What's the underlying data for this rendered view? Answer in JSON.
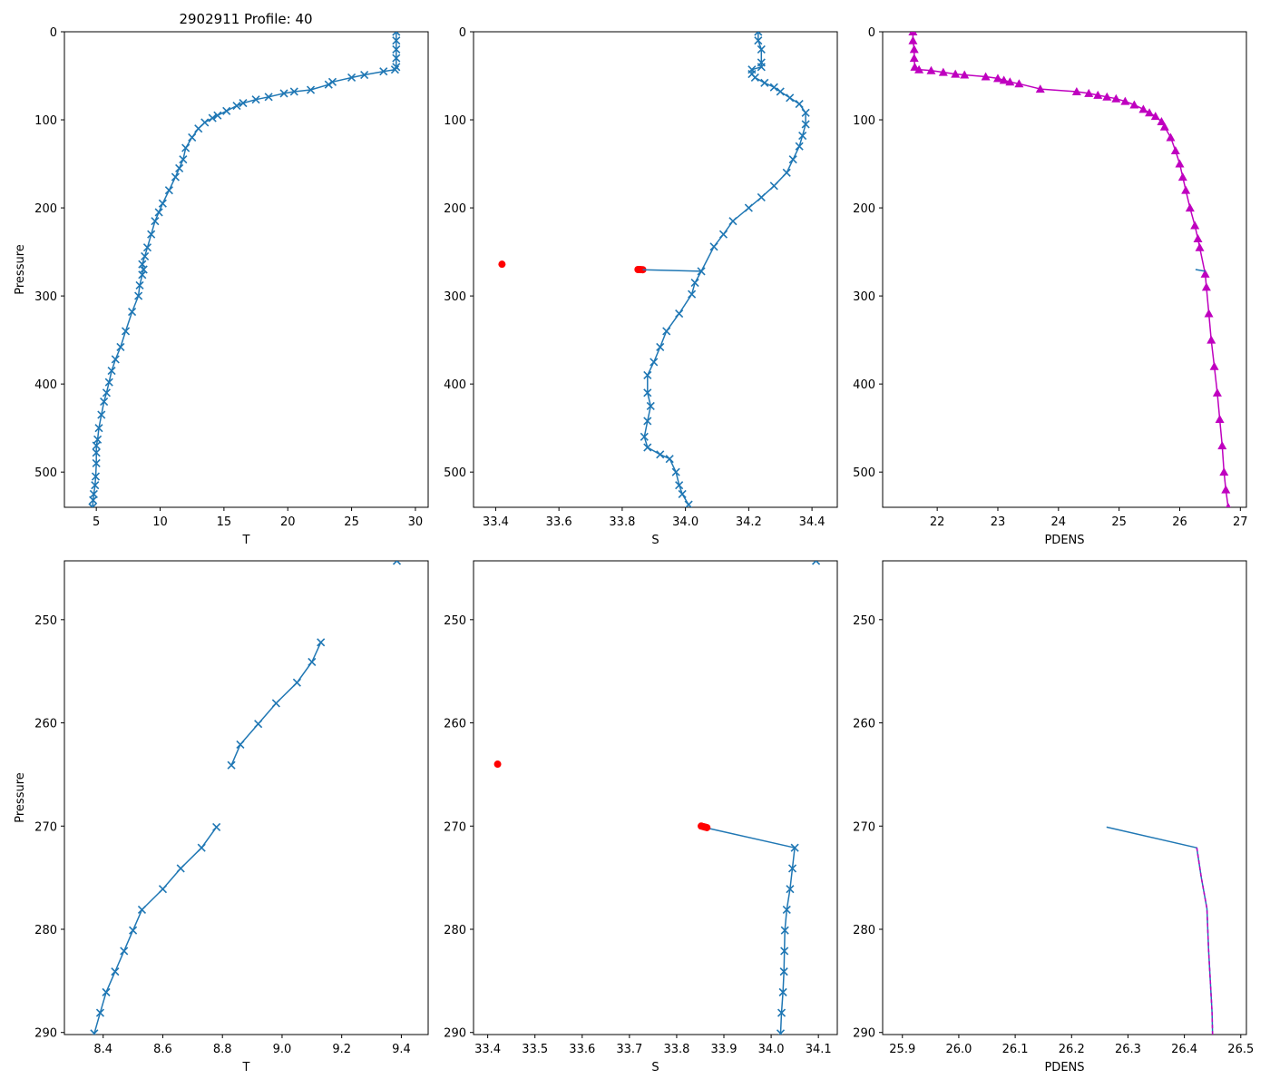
{
  "figure_title": "2902911 Profile: 40",
  "colors": {
    "series": "#1f77b4",
    "flag": "#ff0000",
    "density": "#bf00bf"
  },
  "chart_data": [
    {
      "panel": "top-left",
      "type": "line",
      "title": "2902911 Profile: 40",
      "xlabel": "T",
      "ylabel": "Pressure",
      "xlim": [
        2.5,
        31
      ],
      "ylim": [
        540,
        0
      ],
      "y_inverted": true,
      "xticks": [
        5,
        10,
        15,
        20,
        25,
        30
      ],
      "yticks": [
        0,
        100,
        200,
        300,
        400,
        500
      ],
      "series": [
        {
          "name": "T",
          "marker": "x",
          "color": "#1f77b4",
          "line": true,
          "points": [
            [
              28.5,
              0
            ],
            [
              28.5,
              10
            ],
            [
              28.5,
              20
            ],
            [
              28.5,
              30
            ],
            [
              28.5,
              40
            ],
            [
              28.4,
              43
            ],
            [
              27.5,
              45
            ],
            [
              26,
              49
            ],
            [
              25,
              52
            ],
            [
              23.5,
              57
            ],
            [
              23.2,
              60
            ],
            [
              21.8,
              66
            ],
            [
              20.5,
              68
            ],
            [
              19.7,
              70
            ],
            [
              18.5,
              74
            ],
            [
              17.5,
              77
            ],
            [
              16.5,
              81
            ],
            [
              16,
              84
            ],
            [
              15.2,
              90
            ],
            [
              14.5,
              95
            ],
            [
              14.1,
              98
            ],
            [
              13.5,
              103
            ],
            [
              13,
              110
            ],
            [
              12.5,
              120
            ],
            [
              12,
              132
            ],
            [
              11.8,
              145
            ],
            [
              11.5,
              155
            ],
            [
              11.2,
              165
            ],
            [
              10.7,
              180
            ],
            [
              10.2,
              195
            ],
            [
              9.9,
              205
            ],
            [
              9.6,
              215
            ],
            [
              9.3,
              230
            ],
            [
              9,
              245
            ],
            [
              8.8,
              255
            ],
            [
              8.6,
              264
            ],
            [
              8.7,
              270
            ],
            [
              8.6,
              276
            ],
            [
              8.4,
              288
            ],
            [
              8.3,
              300
            ],
            [
              7.8,
              318
            ],
            [
              7.3,
              340
            ],
            [
              6.9,
              358
            ],
            [
              6.5,
              372
            ],
            [
              6.2,
              385
            ],
            [
              6,
              398
            ],
            [
              5.8,
              410
            ],
            [
              5.6,
              420
            ],
            [
              5.4,
              435
            ],
            [
              5.2,
              450
            ],
            [
              5.1,
              463
            ],
            [
              5,
              470
            ],
            [
              5,
              478
            ],
            [
              5,
              490
            ],
            [
              4.95,
              505
            ],
            [
              4.9,
              515
            ],
            [
              4.8,
              525
            ],
            [
              4.75,
              532
            ],
            [
              4.7,
              540
            ]
          ]
        }
      ]
    },
    {
      "panel": "top-middle",
      "type": "line",
      "xlabel": "S",
      "ylabel": "",
      "xlim": [
        33.33,
        34.48
      ],
      "ylim": [
        540,
        0
      ],
      "y_inverted": true,
      "xticks": [
        33.4,
        33.6,
        33.8,
        34.0,
        34.2,
        34.4
      ],
      "yticks": [
        0,
        100,
        200,
        300,
        400,
        500
      ],
      "series": [
        {
          "name": "S",
          "marker": "x",
          "color": "#1f77b4",
          "line": true,
          "points": [
            [
              34.23,
              0
            ],
            [
              34.23,
              10
            ],
            [
              34.24,
              20
            ],
            [
              34.24,
              35
            ],
            [
              34.24,
              40
            ],
            [
              34.21,
              43
            ],
            [
              34.21,
              48
            ],
            [
              34.22,
              52
            ],
            [
              34.25,
              58
            ],
            [
              34.28,
              63
            ],
            [
              34.3,
              68
            ],
            [
              34.33,
              75
            ],
            [
              34.36,
              82
            ],
            [
              34.38,
              92
            ],
            [
              34.38,
              105
            ],
            [
              34.37,
              118
            ],
            [
              34.36,
              130
            ],
            [
              34.34,
              145
            ],
            [
              34.32,
              160
            ],
            [
              34.28,
              175
            ],
            [
              34.24,
              188
            ],
            [
              34.2,
              200
            ],
            [
              34.15,
              215
            ],
            [
              34.12,
              230
            ],
            [
              34.09,
              244
            ],
            [
              34.05,
              272
            ],
            [
              34.03,
              285
            ],
            [
              34.02,
              298
            ],
            [
              33.98,
              320
            ],
            [
              33.94,
              340
            ],
            [
              33.92,
              358
            ],
            [
              33.9,
              375
            ],
            [
              33.88,
              390
            ],
            [
              33.88,
              410
            ],
            [
              33.89,
              425
            ],
            [
              33.88,
              442
            ],
            [
              33.87,
              460
            ],
            [
              33.88,
              472
            ],
            [
              33.92,
              480
            ],
            [
              33.95,
              485
            ],
            [
              33.97,
              500
            ],
            [
              33.98,
              515
            ],
            [
              33.99,
              525
            ],
            [
              34.01,
              537
            ]
          ]
        },
        {
          "name": "S-flagged",
          "marker": "o",
          "color": "#ff0000",
          "line": false,
          "points": [
            [
              33.42,
              264
            ],
            [
              33.85,
              270
            ],
            [
              33.855,
              270
            ],
            [
              33.86,
              270.1
            ],
            [
              33.865,
              270.2
            ]
          ]
        },
        {
          "name": "S-connector",
          "marker": "",
          "color": "#1f77b4",
          "line": true,
          "points": [
            [
              33.865,
              270.2
            ],
            [
              34.05,
              272
            ]
          ]
        }
      ]
    },
    {
      "panel": "top-right",
      "type": "line",
      "xlabel": "PDENS",
      "ylabel": "",
      "xlim": [
        21.1,
        27.1
      ],
      "ylim": [
        540,
        0
      ],
      "y_inverted": true,
      "xticks": [
        22,
        23,
        24,
        25,
        26,
        27
      ],
      "yticks": [
        0,
        100,
        200,
        300,
        400,
        500
      ],
      "series": [
        {
          "name": "PDENS",
          "marker": "^",
          "color": "#bf00bf",
          "line": true,
          "points": [
            [
              21.6,
              0
            ],
            [
              21.6,
              10
            ],
            [
              21.62,
              20
            ],
            [
              21.62,
              30
            ],
            [
              21.63,
              40
            ],
            [
              21.7,
              43
            ],
            [
              21.9,
              44
            ],
            [
              22.1,
              46
            ],
            [
              22.3,
              48
            ],
            [
              22.45,
              49
            ],
            [
              22.8,
              51
            ],
            [
              23,
              53
            ],
            [
              23.1,
              55
            ],
            [
              23.2,
              57
            ],
            [
              23.35,
              59
            ],
            [
              23.7,
              65
            ],
            [
              24.3,
              68
            ],
            [
              24.5,
              70
            ],
            [
              24.65,
              72
            ],
            [
              24.8,
              74
            ],
            [
              24.95,
              76
            ],
            [
              25.1,
              79
            ],
            [
              25.25,
              83
            ],
            [
              25.4,
              88
            ],
            [
              25.5,
              92
            ],
            [
              25.6,
              96
            ],
            [
              25.7,
              102
            ],
            [
              25.75,
              108
            ],
            [
              25.85,
              120
            ],
            [
              25.93,
              135
            ],
            [
              26.0,
              150
            ],
            [
              26.05,
              165
            ],
            [
              26.1,
              180
            ],
            [
              26.17,
              200
            ],
            [
              26.25,
              220
            ],
            [
              26.3,
              235
            ],
            [
              26.33,
              245
            ],
            [
              26.42,
              275
            ],
            [
              26.44,
              290
            ],
            [
              26.48,
              320
            ],
            [
              26.52,
              350
            ],
            [
              26.57,
              380
            ],
            [
              26.62,
              410
            ],
            [
              26.66,
              440
            ],
            [
              26.7,
              470
            ],
            [
              26.73,
              500
            ],
            [
              26.76,
              520
            ],
            [
              26.8,
              540
            ]
          ]
        },
        {
          "name": "PDENS-line",
          "marker": "",
          "color": "#1f77b4",
          "line": true,
          "points": [
            [
              26.26,
              270
            ],
            [
              26.42,
              272
            ]
          ]
        }
      ]
    },
    {
      "panel": "bottom-left",
      "type": "line",
      "xlabel": "T",
      "ylabel": "Pressure",
      "xlim": [
        8.27,
        9.49
      ],
      "ylim": [
        290.2,
        244.3
      ],
      "y_inverted": true,
      "xticks": [
        8.4,
        8.6,
        8.8,
        9.0,
        9.2,
        9.4
      ],
      "yticks": [
        250,
        260,
        270,
        280,
        290
      ],
      "series": [
        {
          "name": "T",
          "marker": "x",
          "color": "#1f77b4",
          "line": false,
          "points": [
            [
              9.385,
              244.3
            ]
          ]
        },
        {
          "name": "T-upper",
          "marker": "x",
          "color": "#1f77b4",
          "line": true,
          "points": [
            [
              9.13,
              252.2
            ],
            [
              9.1,
              254.1
            ],
            [
              9.05,
              256.1
            ],
            [
              8.98,
              258.1
            ],
            [
              8.92,
              260.1
            ],
            [
              8.86,
              262.1
            ],
            [
              8.83,
              264.1
            ]
          ]
        },
        {
          "name": "T-lower",
          "marker": "x",
          "color": "#1f77b4",
          "line": true,
          "points": [
            [
              8.78,
              270.1
            ],
            [
              8.73,
              272.1
            ],
            [
              8.66,
              274.1
            ],
            [
              8.6,
              276.1
            ],
            [
              8.53,
              278.1
            ],
            [
              8.5,
              280.1
            ],
            [
              8.47,
              282.1
            ],
            [
              8.44,
              284.1
            ],
            [
              8.41,
              286.1
            ],
            [
              8.39,
              288.1
            ],
            [
              8.37,
              290.1
            ]
          ]
        }
      ]
    },
    {
      "panel": "bottom-middle",
      "type": "line",
      "xlabel": "S",
      "ylabel": "",
      "xlim": [
        33.37,
        34.14
      ],
      "ylim": [
        290.2,
        244.3
      ],
      "y_inverted": true,
      "xticks": [
        33.4,
        33.5,
        33.6,
        33.7,
        33.8,
        33.9,
        34.0,
        34.1
      ],
      "yticks": [
        250,
        260,
        270,
        280,
        290
      ],
      "series": [
        {
          "name": "S",
          "marker": "x",
          "color": "#1f77b4",
          "line": false,
          "points": [
            [
              34.095,
              244.3
            ]
          ]
        },
        {
          "name": "S-lower",
          "marker": "x",
          "color": "#1f77b4",
          "line": true,
          "points": [
            [
              34.05,
              272.1
            ],
            [
              34.045,
              274.1
            ],
            [
              34.04,
              276.1
            ],
            [
              34.033,
              278.1
            ],
            [
              34.029,
              280.1
            ],
            [
              34.028,
              282.1
            ],
            [
              34.027,
              284.1
            ],
            [
              34.025,
              286.1
            ],
            [
              34.022,
              288.1
            ],
            [
              34.02,
              290.1
            ]
          ]
        },
        {
          "name": "S-connector",
          "marker": "",
          "color": "#1f77b4",
          "line": true,
          "points": [
            [
              33.865,
              270.2
            ],
            [
              34.05,
              272.1
            ]
          ]
        },
        {
          "name": "S-flagged",
          "marker": "o",
          "color": "#ff0000",
          "line": false,
          "points": [
            [
              33.421,
              264.0
            ],
            [
              33.852,
              270.0
            ],
            [
              33.856,
              270.05
            ],
            [
              33.86,
              270.1
            ],
            [
              33.864,
              270.15
            ]
          ]
        }
      ]
    },
    {
      "panel": "bottom-right",
      "type": "line",
      "xlabel": "PDENS",
      "ylabel": "",
      "xlim": [
        25.865,
        26.51
      ],
      "ylim": [
        290.2,
        244.3
      ],
      "y_inverted": true,
      "xticks": [
        25.9,
        26.0,
        26.1,
        26.2,
        26.3,
        26.4,
        26.5
      ],
      "yticks": [
        250,
        260,
        270,
        280,
        290
      ],
      "series": [
        {
          "name": "PDENS-line",
          "marker": "",
          "color": "#1f77b4",
          "line": true,
          "points": [
            [
              26.262,
              270.1
            ],
            [
              26.422,
              272.1
            ],
            [
              26.43,
              275
            ],
            [
              26.44,
              278
            ],
            [
              26.443,
              282
            ],
            [
              26.446,
              285
            ],
            [
              26.449,
              288
            ],
            [
              26.45,
              290.2
            ]
          ]
        },
        {
          "name": "PDENS-dashed",
          "marker": "",
          "color": "#bf00bf",
          "line": true,
          "dashed": true,
          "points": [
            [
              26.422,
              272.1
            ],
            [
              26.43,
              275
            ],
            [
              26.44,
              278
            ],
            [
              26.443,
              282
            ],
            [
              26.446,
              285
            ],
            [
              26.449,
              288
            ],
            [
              26.45,
              290.2
            ]
          ]
        }
      ]
    }
  ]
}
